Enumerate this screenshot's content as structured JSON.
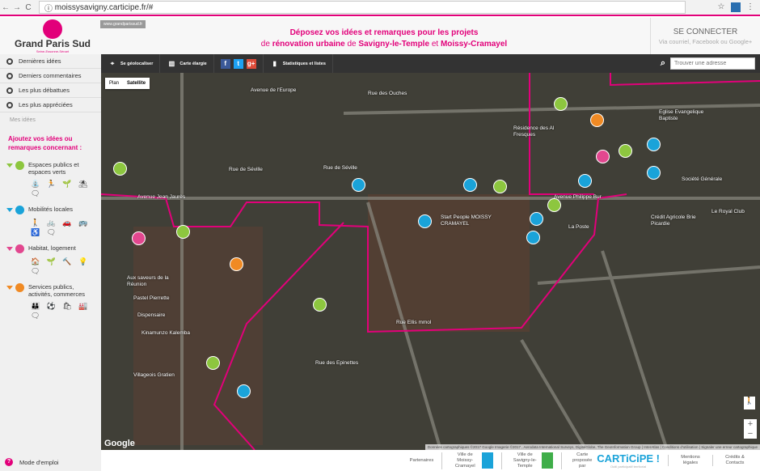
{
  "browser": {
    "url": "moissysavigny.carticipe.fr/#"
  },
  "header": {
    "logo": "Grand Paris Sud",
    "logo_sub": "Seine-Essonne-Sénart",
    "site_link": "www.grandparissud.fr",
    "title_line1": "Déposez vos idées et remarques pour les projets",
    "title_de": "de",
    "title_renov": "rénovation urbaine",
    "title_de2": "de",
    "title_city1": "Savigny-le-Temple",
    "title_et": "et",
    "title_city2": "Moissy-Cramayel",
    "login": "SE CONNECTER",
    "login_sub": "Via courriel, Facebook ou Google+"
  },
  "sidebar": {
    "menu": [
      {
        "label": "Dernières idées"
      },
      {
        "label": "Derniers commentaires"
      },
      {
        "label": "Les plus débattues"
      },
      {
        "label": "Les plus appréciées"
      }
    ],
    "my_ideas": "Mes idées",
    "add_title": "Ajoutez vos idées ou remarques concernant :",
    "categories": [
      {
        "label": "Espaces publics et espaces verts",
        "color": "#8dc63f",
        "icons": "⛲ 🏃 🌱 ⛱ 🗨"
      },
      {
        "label": "Mobilités locales",
        "color": "#1aa3d9",
        "icons": "🚶 🚲 🚗 🚌 ♿ 🗨"
      },
      {
        "label": "Habitat, logement",
        "color": "#e2478f",
        "icons": "🏠 🌱 🔨 💡 🗨"
      },
      {
        "label": "Services publics, activités, commerces",
        "color": "#f08a24",
        "icons": "👪 ⚽ 🛍 🏭 🗨"
      }
    ],
    "help": "Mode d'emploi"
  },
  "toolbar": {
    "geoloc": "Se géolocaliser",
    "map_large": "Carte élargie",
    "stats": "Statistiques et listes",
    "search_placeholder": "Trouver une adresse"
  },
  "map": {
    "plan": "Plan",
    "satellite": "Satellite",
    "labels": [
      "Avenue de l'Europe",
      "Rue des Ouches",
      "Rue de Séville",
      "Rue de Séville",
      "Avenue Jean Jaurès",
      "Avenue Philippe Bur",
      "Start People MOISSY CRAMAYEL",
      "La Poste",
      "Aux saveurs de la Réunion",
      "Pastel Pierrette",
      "Dispensaire",
      "Kinamunzo Kalemba",
      "Villageois Gratien",
      "Eglise Evangelique Baptiste",
      "Résidence des Al Fresques",
      "Société Générale",
      "Crédit Agricole Brie Picardie",
      "Le Royal Club",
      "Rue des Epinettes",
      "Rue Ellis mmol"
    ],
    "attribution": "Données cartographiques ©2017 Google Imagerie ©2017 , Aerodata International Surveys, DigitalGlobe, The GeoInformation Group | InterAtlas | Conditions d'utilisation | Signaler une erreur cartographique",
    "google": "Google"
  },
  "footer": {
    "partners": "Partenaires",
    "moissy": "Ville de Moissy-Cramayel",
    "savigny": "Ville de Savigny-le-Temple",
    "powered": "Carte proposée par",
    "carticipe": "CARTiCiPE !",
    "carticipe_sub": "Outil participatif territorial",
    "legal": "Mentions légales",
    "credits": "Crédits & Contacts"
  }
}
